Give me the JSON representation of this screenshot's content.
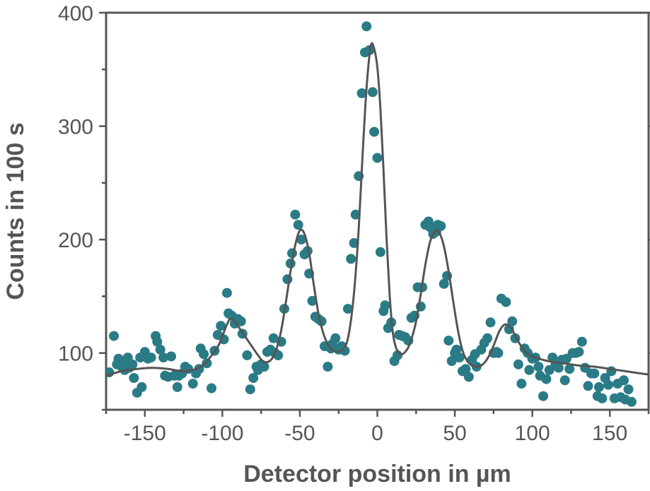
{
  "chart_data": {
    "type": "scatter",
    "title": "",
    "xlabel": "Detector position in µm",
    "ylabel": "Counts in 100 s",
    "xlim": [
      -175,
      175
    ],
    "ylim": [
      50,
      400
    ],
    "xticks": [
      -150,
      -100,
      -50,
      0,
      50,
      100,
      150
    ],
    "xtick_labels": [
      "-150",
      "-100",
      "-50",
      "0",
      "50",
      "100",
      "150"
    ],
    "yticks": [
      100,
      200,
      300,
      400
    ],
    "ytick_labels": [
      "100",
      "200",
      "300",
      "400"
    ],
    "grid": false,
    "legend": "none",
    "colors": {
      "points": "#2a7b86",
      "fit": "#555555",
      "axis": "#555555"
    },
    "series": [
      {
        "type": "scatter",
        "points": [
          [
            -173,
            83
          ],
          [
            -170,
            115
          ],
          [
            -168,
            90
          ],
          [
            -167,
            95
          ],
          [
            -165,
            88
          ],
          [
            -164,
            92
          ],
          [
            -163,
            85
          ],
          [
            -161,
            96
          ],
          [
            -160,
            87
          ],
          [
            -158,
            90
          ],
          [
            -157,
            78
          ],
          [
            -155,
            65
          ],
          [
            -153,
            96
          ],
          [
            -152,
            70
          ],
          [
            -150,
            101
          ],
          [
            -148,
            95
          ],
          [
            -146,
            96
          ],
          [
            -143,
            115
          ],
          [
            -142,
            110
          ],
          [
            -140,
            103
          ],
          [
            -138,
            96
          ],
          [
            -137,
            80
          ],
          [
            -135,
            79
          ],
          [
            -133,
            97
          ],
          [
            -131,
            80
          ],
          [
            -129,
            70
          ],
          [
            -128,
            80
          ],
          [
            -126,
            82
          ],
          [
            -124,
            88
          ],
          [
            -122,
            86
          ],
          [
            -119,
            73
          ],
          [
            -117,
            82
          ],
          [
            -115,
            86
          ],
          [
            -114,
            104
          ],
          [
            -112,
            99
          ],
          [
            -110,
            91
          ],
          [
            -107,
            69
          ],
          [
            -105,
            102
          ],
          [
            -103,
            116
          ],
          [
            -101,
            124
          ],
          [
            -99,
            112
          ],
          [
            -97,
            153
          ],
          [
            -96,
            135
          ],
          [
            -94,
            133
          ],
          [
            -92,
            126
          ],
          [
            -90,
            130
          ],
          [
            -88,
            128
          ],
          [
            -87,
            117
          ],
          [
            -84,
            98
          ],
          [
            -82,
            68
          ],
          [
            -80,
            78
          ],
          [
            -78,
            88
          ],
          [
            -77,
            85
          ],
          [
            -75,
            90
          ],
          [
            -73,
            88
          ],
          [
            -71,
            101
          ],
          [
            -69,
            103
          ],
          [
            -67,
            113
          ],
          [
            -66,
            100
          ],
          [
            -64,
            98
          ],
          [
            -62,
            110
          ],
          [
            -60,
            139
          ],
          [
            -58,
            165
          ],
          [
            -56,
            179
          ],
          [
            -55,
            188
          ],
          [
            -53,
            222
          ],
          [
            -51,
            213
          ],
          [
            -49,
            200
          ],
          [
            -47,
            187
          ],
          [
            -45,
            190
          ],
          [
            -44,
            170
          ],
          [
            -42,
            146
          ],
          [
            -40,
            132
          ],
          [
            -38,
            130
          ],
          [
            -36,
            128
          ],
          [
            -34,
            106
          ],
          [
            -32,
            88
          ],
          [
            -30,
            104
          ],
          [
            -29,
            108
          ],
          [
            -27,
            113
          ],
          [
            -25,
            103
          ],
          [
            -23,
            106
          ],
          [
            -21,
            102
          ],
          [
            -19,
            139
          ],
          [
            -17,
            183
          ],
          [
            -15,
            197
          ],
          [
            -14,
            222
          ],
          [
            -12,
            256
          ],
          [
            -10,
            329
          ],
          [
            -8,
            365
          ],
          [
            -7,
            388
          ],
          [
            -5,
            367
          ],
          [
            -3,
            330
          ],
          [
            -2,
            295
          ],
          [
            0,
            272
          ],
          [
            2,
            189
          ],
          [
            4,
            137
          ],
          [
            5,
            142
          ],
          [
            7,
            122
          ],
          [
            9,
            127
          ],
          [
            11,
            93
          ],
          [
            13,
            98
          ],
          [
            14,
            116
          ],
          [
            16,
            115
          ],
          [
            18,
            114
          ],
          [
            20,
            111
          ],
          [
            22,
            131
          ],
          [
            24,
            133
          ],
          [
            26,
            158
          ],
          [
            28,
            141
          ],
          [
            29,
            158
          ],
          [
            31,
            213
          ],
          [
            33,
            216
          ],
          [
            34,
            211
          ],
          [
            36,
            205
          ],
          [
            37,
            209
          ],
          [
            38,
            207
          ],
          [
            39,
            213
          ],
          [
            41,
            212
          ],
          [
            43,
            161
          ],
          [
            45,
            168
          ],
          [
            46,
            111
          ],
          [
            48,
            93
          ],
          [
            50,
            100
          ],
          [
            51,
            103
          ],
          [
            53,
            96
          ],
          [
            55,
            84
          ],
          [
            57,
            86
          ],
          [
            59,
            79
          ],
          [
            61,
            94
          ],
          [
            63,
            99
          ],
          [
            64,
            88
          ],
          [
            67,
            103
          ],
          [
            69,
            109
          ],
          [
            71,
            113
          ],
          [
            73,
            127
          ],
          [
            75,
            100
          ],
          [
            77,
            101
          ],
          [
            78,
            100
          ],
          [
            80,
            148
          ],
          [
            83,
            145
          ],
          [
            85,
            121
          ],
          [
            87,
            128
          ],
          [
            89,
            113
          ],
          [
            91,
            90
          ],
          [
            93,
            73
          ],
          [
            95,
            104
          ],
          [
            97,
            100
          ],
          [
            98,
            85
          ],
          [
            100,
            95
          ],
          [
            102,
            96
          ],
          [
            104,
            88
          ],
          [
            105,
            80
          ],
          [
            107,
            62
          ],
          [
            109,
            77
          ],
          [
            111,
            85
          ],
          [
            113,
            96
          ],
          [
            115,
            90
          ],
          [
            117,
            87
          ],
          [
            119,
            94
          ],
          [
            121,
            76
          ],
          [
            122,
            95
          ],
          [
            124,
            86
          ],
          [
            126,
            100
          ],
          [
            128,
            100
          ],
          [
            130,
            101
          ],
          [
            132,
            110
          ],
          [
            134,
            87
          ],
          [
            136,
            71
          ],
          [
            138,
            82
          ],
          [
            140,
            82
          ],
          [
            142,
            62
          ],
          [
            143,
            70
          ],
          [
            145,
            60
          ],
          [
            147,
            78
          ],
          [
            149,
            72
          ],
          [
            151,
            84
          ],
          [
            153,
            60
          ],
          [
            155,
            73
          ],
          [
            157,
            61
          ],
          [
            159,
            76
          ],
          [
            160,
            59
          ],
          [
            162,
            68
          ],
          [
            164,
            57
          ]
        ]
      },
      {
        "type": "line",
        "curve": [
          [
            -175,
            80
          ],
          [
            -165,
            84
          ],
          [
            -155,
            86
          ],
          [
            -145,
            87
          ],
          [
            -135,
            86
          ],
          [
            -125,
            84
          ],
          [
            -115,
            87
          ],
          [
            -108,
            96
          ],
          [
            -102,
            108
          ],
          [
            -98,
            122
          ],
          [
            -95,
            130
          ],
          [
            -92,
            128
          ],
          [
            -88,
            120
          ],
          [
            -83,
            110
          ],
          [
            -78,
            100
          ],
          [
            -74,
            93
          ],
          [
            -71,
            92
          ],
          [
            -68,
            95
          ],
          [
            -65,
            104
          ],
          [
            -62,
            120
          ],
          [
            -59,
            145
          ],
          [
            -56,
            172
          ],
          [
            -53,
            195
          ],
          [
            -50,
            208
          ],
          [
            -47,
            205
          ],
          [
            -44,
            188
          ],
          [
            -41,
            160
          ],
          [
            -38,
            135
          ],
          [
            -35,
            118
          ],
          [
            -32,
            108
          ],
          [
            -29,
            103
          ],
          [
            -26,
            101
          ],
          [
            -23,
            102
          ],
          [
            -20,
            108
          ],
          [
            -18,
            120
          ],
          [
            -16,
            140
          ],
          [
            -14,
            170
          ],
          [
            -12,
            210
          ],
          [
            -10,
            262
          ],
          [
            -8,
            312
          ],
          [
            -6,
            350
          ],
          [
            -4,
            372
          ],
          [
            -2,
            368
          ],
          [
            0,
            352
          ],
          [
            2,
            315
          ],
          [
            4,
            260
          ],
          [
            6,
            200
          ],
          [
            8,
            150
          ],
          [
            10,
            118
          ],
          [
            12,
            105
          ],
          [
            14,
            100
          ],
          [
            16,
            99
          ],
          [
            18,
            101
          ],
          [
            20,
            105
          ],
          [
            22,
            112
          ],
          [
            25,
            128
          ],
          [
            28,
            152
          ],
          [
            31,
            178
          ],
          [
            34,
            198
          ],
          [
            37,
            207
          ],
          [
            40,
            206
          ],
          [
            43,
            194
          ],
          [
            46,
            172
          ],
          [
            49,
            145
          ],
          [
            52,
            120
          ],
          [
            55,
            102
          ],
          [
            58,
            93
          ],
          [
            61,
            89
          ],
          [
            64,
            88
          ],
          [
            67,
            89
          ],
          [
            70,
            93
          ],
          [
            73,
            100
          ],
          [
            76,
            110
          ],
          [
            79,
            120
          ],
          [
            82,
            125
          ],
          [
            85,
            124
          ],
          [
            88,
            118
          ],
          [
            91,
            110
          ],
          [
            95,
            102
          ],
          [
            100,
            97
          ],
          [
            110,
            93
          ],
          [
            120,
            91
          ],
          [
            130,
            89
          ],
          [
            140,
            88
          ],
          [
            150,
            86
          ],
          [
            160,
            84
          ],
          [
            170,
            82
          ],
          [
            175,
            81
          ]
        ]
      }
    ]
  }
}
